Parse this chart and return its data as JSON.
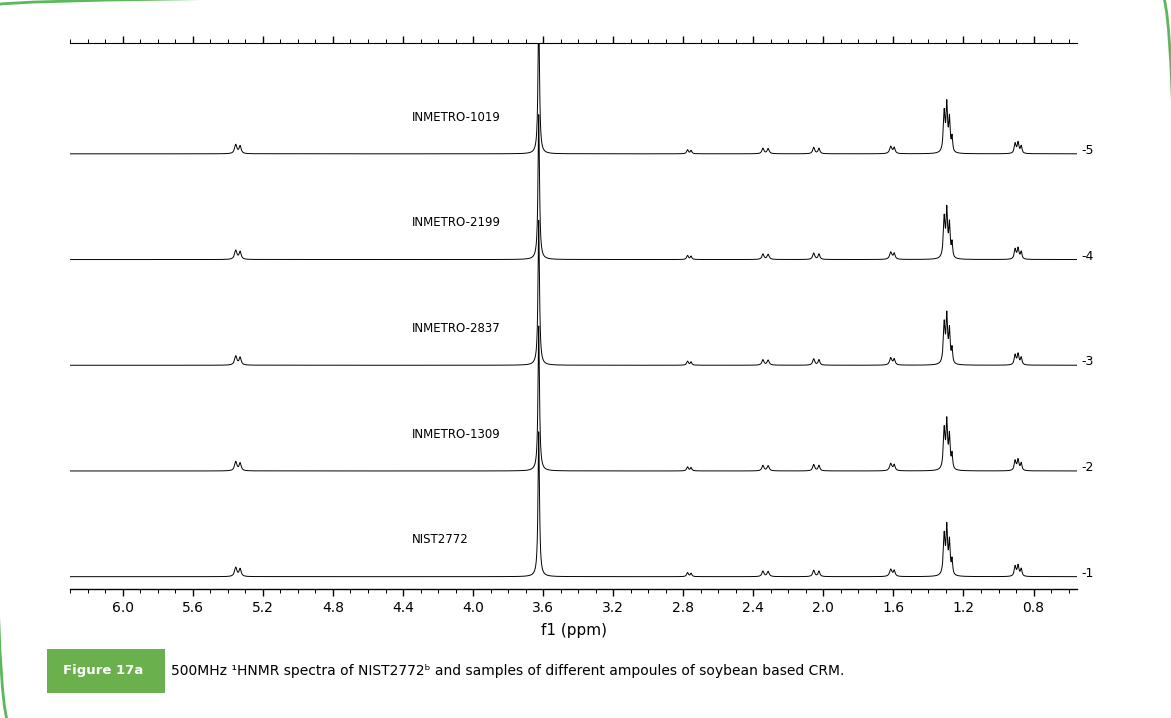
{
  "xlabel": "f1 (ppm)",
  "xlim_left": 6.3,
  "xlim_right": 0.55,
  "xticks": [
    6.0,
    5.6,
    5.2,
    4.8,
    4.4,
    4.0,
    3.6,
    3.2,
    2.8,
    2.4,
    2.0,
    1.6,
    1.2,
    0.8
  ],
  "spectrum_labels": [
    "INMETRO-1019",
    "INMETRO-2199",
    "INMETRO-2837",
    "INMETRO-1309",
    "NIST2772"
  ],
  "ytick_labels": [
    "-5",
    "-4",
    "-3",
    "-2",
    "-1"
  ],
  "background_color": "#ffffff",
  "border_color": "#5cb85c",
  "caption_label": "Figure 17a",
  "caption_text": "500MHz ¹HNMR spectra of NIST2772ᵇ and samples of different ampoules of soybean based CRM.",
  "label_color": "#6ab04c"
}
